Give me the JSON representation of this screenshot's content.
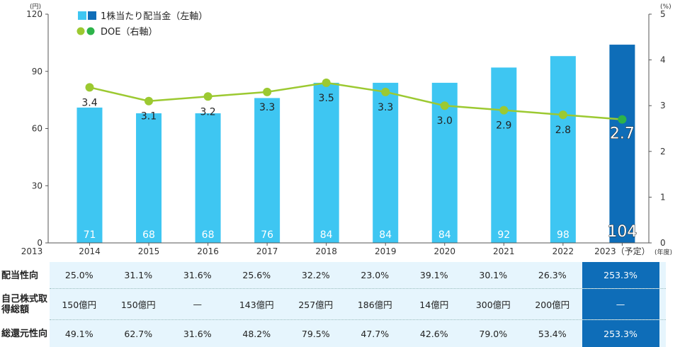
{
  "chart_data": {
    "type": "bar",
    "categories": [
      "2014",
      "2015",
      "2016",
      "2017",
      "2018",
      "2019",
      "2020",
      "2021",
      "2022",
      "2023（予定）"
    ],
    "series": [
      {
        "name": "1株当たり配当金（左軸）",
        "axis": "left",
        "values": [
          71,
          68,
          68,
          76,
          84,
          84,
          84,
          92,
          98,
          104
        ]
      },
      {
        "name": "DOE（右軸）",
        "axis": "right",
        "type": "line",
        "values": [
          3.4,
          3.1,
          3.2,
          3.3,
          3.5,
          3.3,
          3.0,
          2.9,
          2.8,
          2.7
        ]
      }
    ],
    "x_start_label": "2013",
    "x_unit": "(年度)",
    "y_left": {
      "unit": "(円)",
      "ticks": [
        0,
        30,
        60,
        90,
        120
      ],
      "ylim": [
        0,
        120
      ]
    },
    "y_right": {
      "unit": "(%)",
      "ticks": [
        0,
        1,
        2,
        3,
        4,
        5
      ],
      "ylim": [
        0,
        5
      ]
    },
    "colors": {
      "bar": "#3ec6f2",
      "bar_forecast": "#0e6db8",
      "line": "#9cc931",
      "point_forecast": "#2db34a",
      "axis": "#555555"
    }
  },
  "table": {
    "rows": [
      {
        "label": "配当性向",
        "values": [
          "25.0%",
          "31.1%",
          "31.6%",
          "25.6%",
          "32.2%",
          "23.0%",
          "39.1%",
          "30.1%",
          "26.3%",
          "253.3%"
        ]
      },
      {
        "label": "自己株式取得総額",
        "values": [
          "150億円",
          "150億円",
          "—",
          "143億円",
          "257億円",
          "186億円",
          "14億円",
          "300億円",
          "200億円",
          "—"
        ]
      },
      {
        "label": "総還元性向",
        "values": [
          "49.1%",
          "62.7%",
          "31.6%",
          "48.2%",
          "79.5%",
          "47.7%",
          "42.6%",
          "79.0%",
          "53.4%",
          "253.3%"
        ]
      }
    ]
  }
}
